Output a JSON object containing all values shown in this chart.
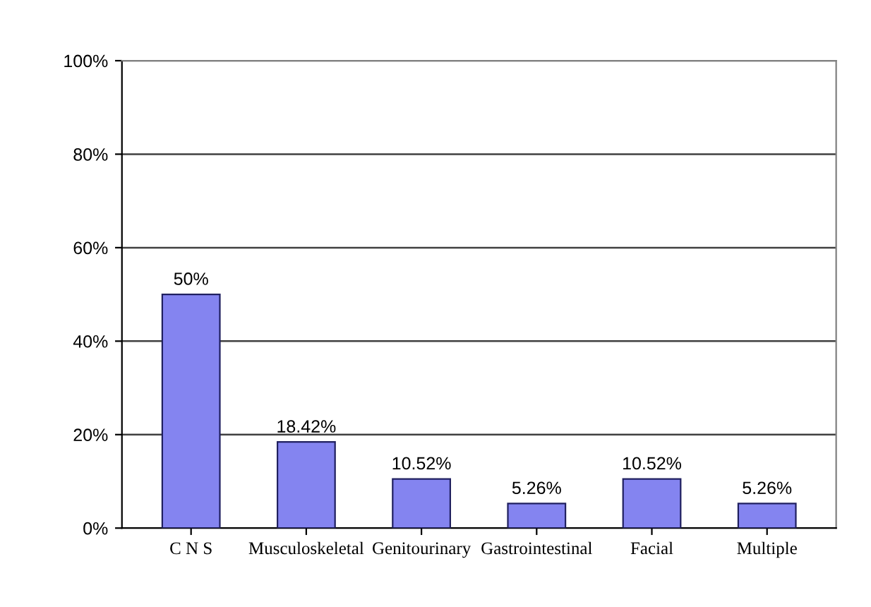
{
  "chart_data": {
    "type": "bar",
    "categories": [
      "C N S",
      "Musculoskeletal",
      "Genitourinary",
      "Gastrointestinal",
      "Facial",
      "Multiple"
    ],
    "values": [
      50,
      18.42,
      10.52,
      5.26,
      10.52,
      5.26
    ],
    "value_labels": [
      "50%",
      "18.42%",
      "10.52%",
      "5.26%",
      "10.52%",
      "5.26%"
    ],
    "color": "#8484f0",
    "ylim": [
      0,
      100
    ],
    "yticks": [
      {
        "value": 0,
        "label": "0%"
      },
      {
        "value": 20,
        "label": "20%"
      },
      {
        "value": 40,
        "label": "40%"
      },
      {
        "value": 60,
        "label": "60%"
      },
      {
        "value": 80,
        "label": "80%"
      },
      {
        "value": 100,
        "label": "100%"
      }
    ],
    "grid": "y"
  }
}
